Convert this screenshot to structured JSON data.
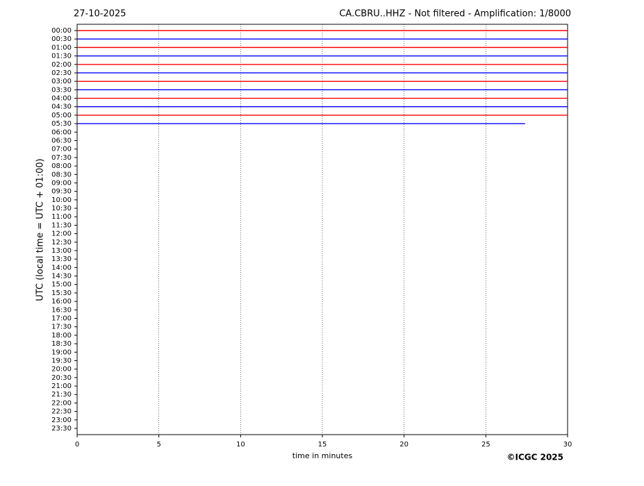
{
  "chart_data": {
    "type": "helicorder",
    "date": "27-10-2025",
    "title": "CA.CBRU..HHZ - Not filtered - Amplification: 1/8000",
    "y_label": "UTC (local time = UTC + 01:00)",
    "x_label": "time in minutes",
    "copyright": "©ICGC 2025",
    "categories": [
      "00:00",
      "00:30",
      "01:00",
      "01:30",
      "02:00",
      "02:30",
      "03:00",
      "03:30",
      "04:00",
      "04:30",
      "05:00",
      "05:30",
      "06:00",
      "06:30",
      "07:00",
      "07:30",
      "08:00",
      "08:30",
      "09:00",
      "09:30",
      "10:00",
      "10:30",
      "11:00",
      "11:30",
      "12:00",
      "12:30",
      "13:00",
      "13:30",
      "14:00",
      "14:30",
      "15:00",
      "15:30",
      "16:00",
      "16:30",
      "17:00",
      "17:30",
      "18:00",
      "18:30",
      "19:00",
      "19:30",
      "20:00",
      "20:30",
      "21:00",
      "21:30",
      "22:00",
      "22:30",
      "23:00",
      "23:30"
    ],
    "trace_ends": [
      30,
      30,
      30,
      30,
      30,
      30,
      30,
      30,
      30,
      30,
      30,
      27.4
    ],
    "trace_colors": [
      "#ff0000",
      "#0000ff",
      "#ff0000",
      "#0000ff",
      "#ff0000",
      "#0000ff",
      "#ff0000",
      "#0000ff",
      "#ff0000",
      "#0000ff",
      "#ff0000",
      "#0000ff"
    ],
    "xlim": [
      0,
      30
    ],
    "xticks": [
      0,
      5,
      10,
      15,
      20,
      25,
      30
    ],
    "grid": true
  }
}
